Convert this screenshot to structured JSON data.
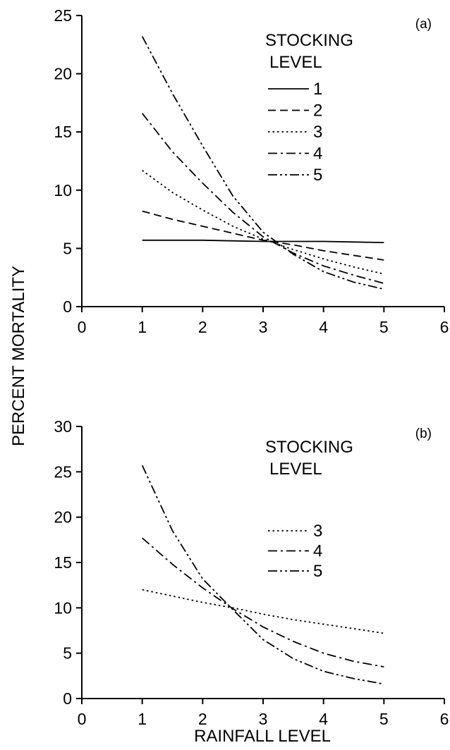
{
  "ylabel": "PERCENT MORTALITY",
  "xlabel": "RAINFALL LEVEL",
  "line_styles": {
    "1": "solid",
    "2": "dashed",
    "3": "dotted",
    "4": "dash-dot",
    "5": "dash-dot-dot"
  },
  "chart_data": [
    {
      "type": "line",
      "panel_label": "(a)",
      "legend_title": [
        "STOCKING",
        "LEVEL"
      ],
      "xlim": [
        0,
        6
      ],
      "ylim": [
        0,
        25
      ],
      "xticks": [
        0,
        1,
        2,
        3,
        4,
        5,
        6
      ],
      "yticks": [
        0,
        5,
        10,
        15,
        20,
        25
      ],
      "x": [
        1,
        1.5,
        2,
        2.5,
        3,
        3.5,
        4,
        4.5,
        5
      ],
      "series": [
        {
          "name": "1",
          "values": [
            5.7,
            5.7,
            5.7,
            5.65,
            5.6,
            5.6,
            5.6,
            5.55,
            5.5
          ]
        },
        {
          "name": "2",
          "values": [
            8.2,
            7.5,
            6.9,
            6.3,
            5.7,
            5.3,
            4.8,
            4.4,
            4.0
          ]
        },
        {
          "name": "3",
          "values": [
            11.7,
            9.8,
            8.3,
            6.9,
            5.8,
            4.9,
            4.1,
            3.4,
            2.8
          ]
        },
        {
          "name": "4",
          "values": [
            16.6,
            13.3,
            10.6,
            8.1,
            6.0,
            4.6,
            3.5,
            2.7,
            2.0
          ]
        },
        {
          "name": "5",
          "values": [
            23.2,
            18.3,
            13.8,
            9.5,
            6.4,
            4.5,
            3.0,
            2.1,
            1.5
          ]
        }
      ]
    },
    {
      "type": "line",
      "panel_label": "(b)",
      "legend_title": [
        "STOCKING",
        "LEVEL"
      ],
      "xlim": [
        0,
        6
      ],
      "ylim": [
        0,
        30
      ],
      "xticks": [
        0,
        1,
        2,
        3,
        4,
        5,
        6
      ],
      "yticks": [
        0,
        5,
        10,
        15,
        20,
        25,
        30
      ],
      "x": [
        1,
        1.5,
        2,
        2.5,
        3,
        3.5,
        4,
        4.5,
        5
      ],
      "series": [
        {
          "name": "3",
          "values": [
            12.0,
            11.3,
            10.6,
            10.0,
            9.3,
            8.7,
            8.2,
            7.7,
            7.2
          ]
        },
        {
          "name": "4",
          "values": [
            17.7,
            14.8,
            12.2,
            9.9,
            7.9,
            6.3,
            5.0,
            4.1,
            3.5
          ]
        },
        {
          "name": "5",
          "values": [
            25.7,
            18.5,
            13.2,
            9.8,
            6.5,
            4.4,
            3.0,
            2.2,
            1.6
          ]
        }
      ]
    }
  ]
}
